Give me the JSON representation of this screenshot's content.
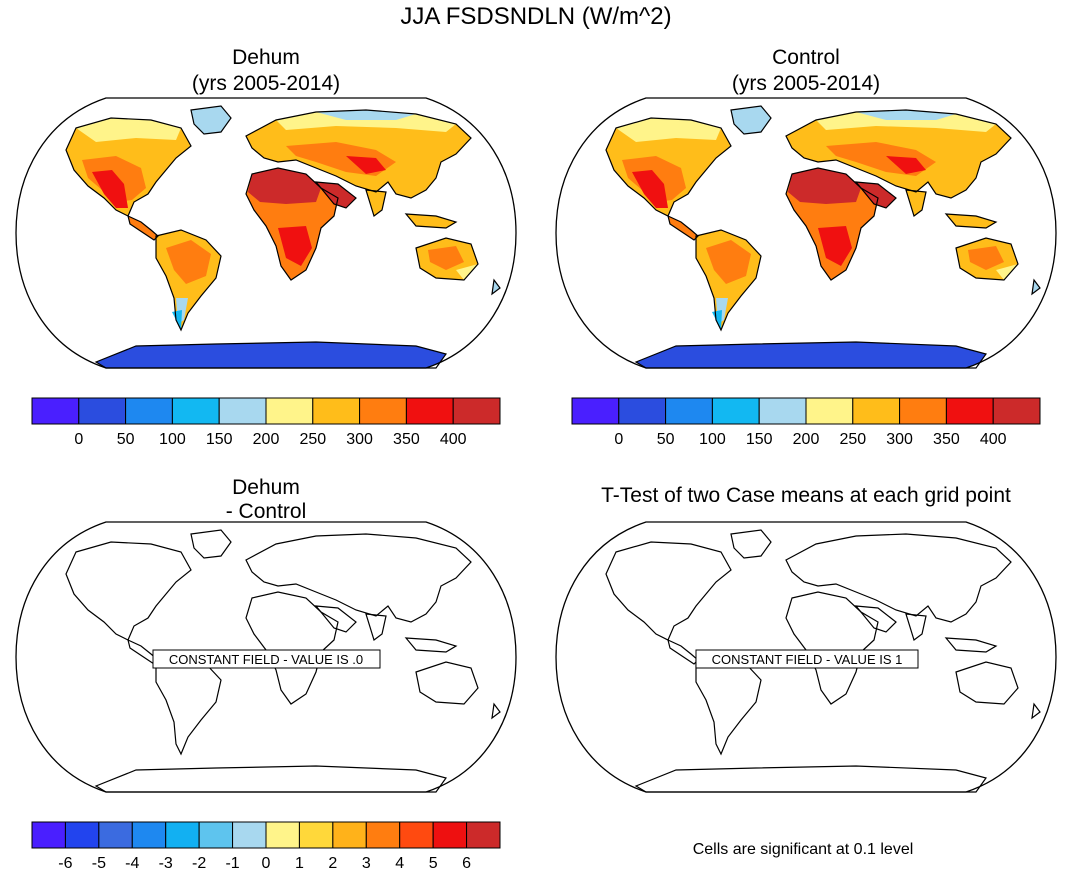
{
  "main_title": "JJA FSDSNDLN (W/m^2)",
  "panels": [
    {
      "id": "dehum",
      "title_line1": "Dehum",
      "title_line2": "(yrs 2005-2014)"
    },
    {
      "id": "control",
      "title_line1": "Control",
      "title_line2": "(yrs 2005-2014)"
    },
    {
      "id": "diff",
      "title_line1": "Dehum",
      "title_line2": "- Control",
      "note": "CONSTANT FIELD - VALUE IS .0"
    },
    {
      "id": "ttest",
      "title_line1": "T-Test of two Case means at each grid point",
      "note": "CONSTANT FIELD - VALUE IS 1"
    }
  ],
  "colorbar_main": {
    "labels": [
      "0",
      "50",
      "100",
      "150",
      "200",
      "250",
      "300",
      "350",
      "400"
    ],
    "colors": [
      "#4a1fff",
      "#2b4ddf",
      "#1e88f0",
      "#12b8f2",
      "#a8d8ef",
      "#fff48a",
      "#ffbd1a",
      "#ff7d10",
      "#f01010",
      "#cc2a2a"
    ]
  },
  "colorbar_diff": {
    "labels": [
      "-6",
      "-5",
      "-4",
      "-3",
      "-2",
      "-1",
      "0",
      "1",
      "2",
      "3",
      "4",
      "5",
      "6"
    ],
    "colors": [
      "#4a1fff",
      "#2244ee",
      "#3b6be0",
      "#1e88f0",
      "#12b0f2",
      "#5ec4ee",
      "#a8d8ef",
      "#fff48a",
      "#ffd83a",
      "#ffb21a",
      "#ff7d10",
      "#ff4a10",
      "#ee1010",
      "#cc2a2a"
    ]
  },
  "significance_note": "Cells are significant at 0.1 level",
  "chart_data": [
    {
      "type": "heatmap",
      "title": "Dehum (yrs 2005-2014)",
      "color_levels": [
        0,
        50,
        100,
        150,
        200,
        250,
        300,
        350,
        400
      ],
      "approx_regional_values": [
        {
          "region": "Sahara / Arabian Peninsula",
          "value": 400
        },
        {
          "region": "Southern USA / Mexico",
          "value": 350
        },
        {
          "region": "Central Africa / Amazon",
          "value": 300
        },
        {
          "region": "Australia",
          "value": 275
        },
        {
          "region": "Northern Canada / Siberia",
          "value": 225
        },
        {
          "region": "Southern South America",
          "value": 175
        },
        {
          "region": "Antarctica",
          "value": 50
        }
      ]
    },
    {
      "type": "heatmap",
      "title": "Control (yrs 2005-2014)",
      "color_levels": [
        0,
        50,
        100,
        150,
        200,
        250,
        300,
        350,
        400
      ],
      "approx_regional_values": [
        {
          "region": "Sahara / Arabian Peninsula",
          "value": 400
        },
        {
          "region": "Southern USA / Mexico",
          "value": 350
        },
        {
          "region": "Central Africa / Amazon",
          "value": 300
        },
        {
          "region": "Australia",
          "value": 275
        },
        {
          "region": "Northern Canada / Siberia",
          "value": 225
        },
        {
          "region": "Southern South America",
          "value": 175
        },
        {
          "region": "Antarctica",
          "value": 50
        }
      ]
    },
    {
      "type": "heatmap",
      "title": "Dehum - Control",
      "color_levels": [
        -6,
        -5,
        -4,
        -3,
        -2,
        -1,
        0,
        1,
        2,
        3,
        4,
        5,
        6
      ],
      "constant_value": 0
    },
    {
      "type": "heatmap",
      "title": "T-Test of two Case means at each grid point",
      "constant_value": 1
    }
  ]
}
